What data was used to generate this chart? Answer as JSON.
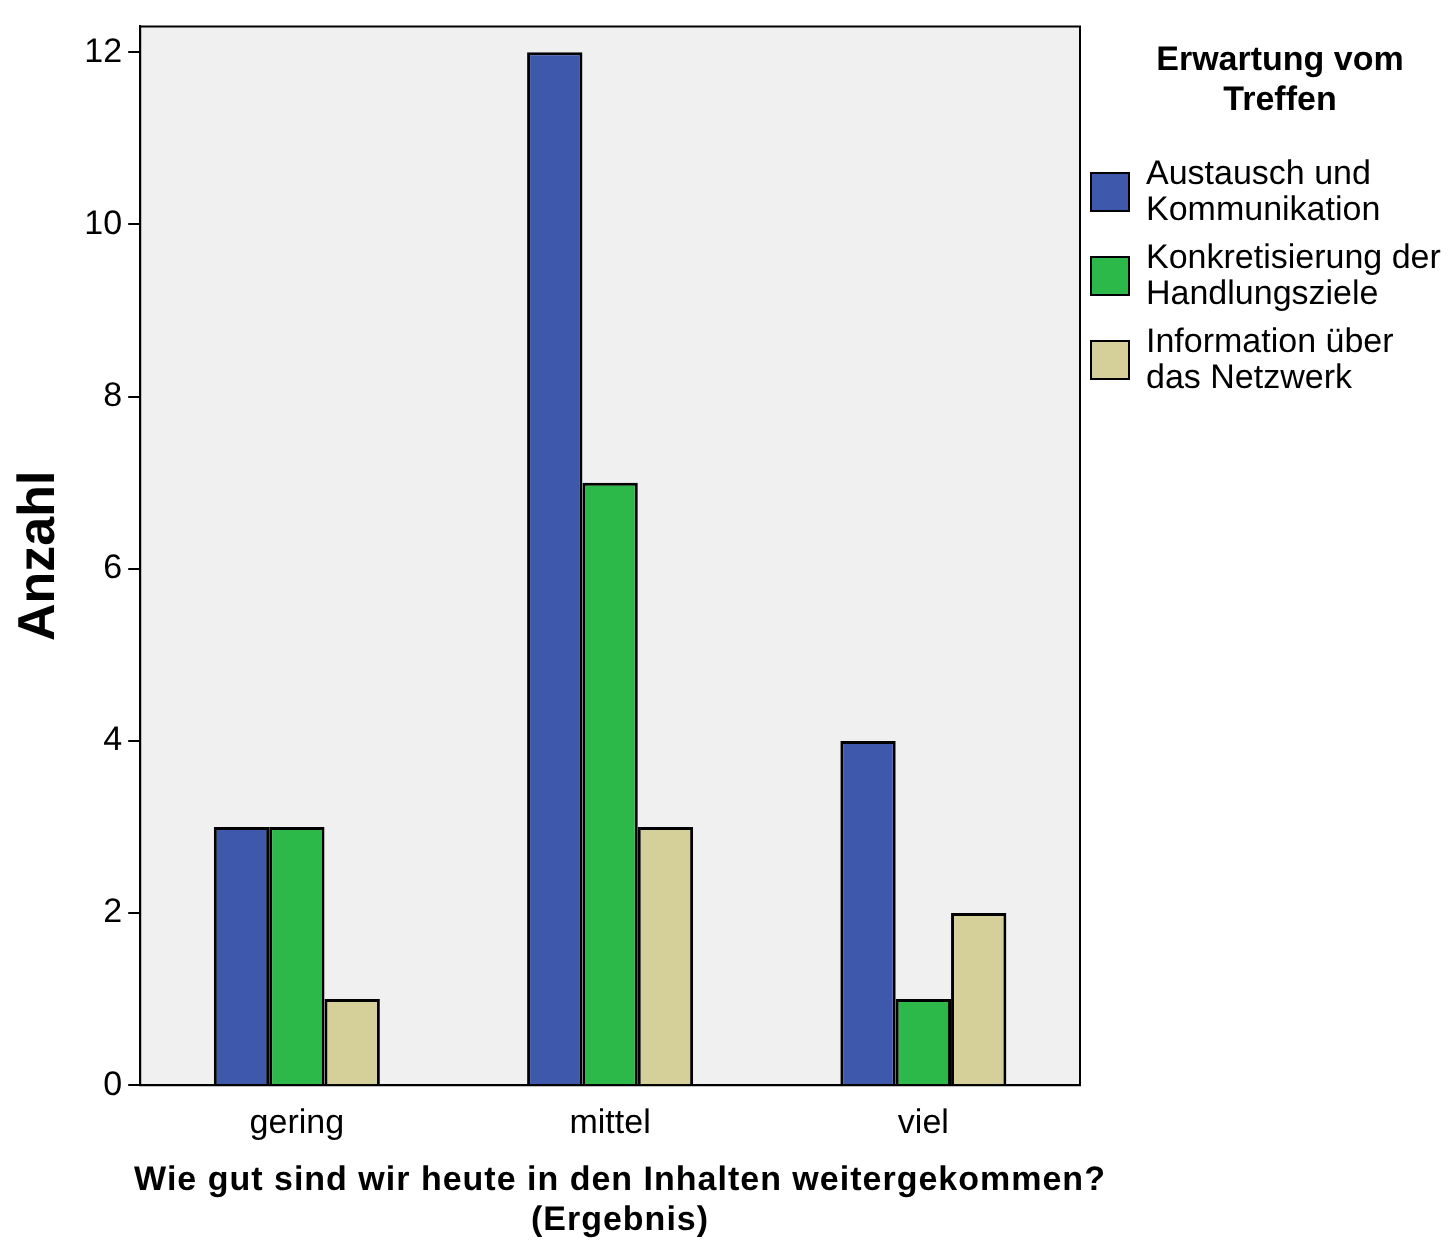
{
  "chart_data": {
    "type": "bar",
    "categories": [
      "gering",
      "mittel",
      "viel"
    ],
    "series": [
      {
        "name": "Austausch und Kommunikation",
        "color": "#3e58ac",
        "values": [
          3,
          12,
          4
        ]
      },
      {
        "name": "Konkretisierung der Handlungsziele",
        "color": "#2db84a",
        "values": [
          3,
          7,
          1
        ]
      },
      {
        "name": "Information über das Netzwerk",
        "color": "#d5d09a",
        "values": [
          1,
          3,
          2
        ]
      }
    ],
    "xlabel": "Wie gut sind wir heute in den Inhalten weitergekommen? (Ergebnis)",
    "ylabel": "Anzahl",
    "legend_title": "Erwartung vom Treffen",
    "ylim": [
      0,
      12.3
    ],
    "yticks": [
      0,
      2,
      4,
      6,
      8,
      10,
      12
    ],
    "grid": false,
    "legend": "right"
  }
}
